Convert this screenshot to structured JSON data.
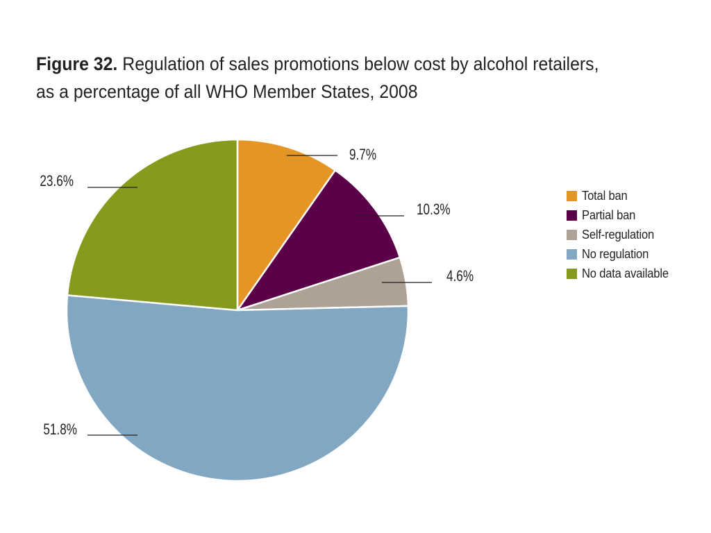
{
  "figure": {
    "title_lead": "Figure 32.",
    "title_line1": "Regulation of sales promotions below cost by alcohol retailers,",
    "title_line2": "as a percentage of all WHO Member States, 2008"
  },
  "chart_data": {
    "type": "pie",
    "title": "Figure 32. Regulation of sales promotions below cost by alcohol retailers, as a percentage of all WHO Member States, 2008",
    "unit": "%",
    "start_angle_deg": 0,
    "direction": "clockwise",
    "slices": [
      {
        "label": "Total ban",
        "value": 9.7,
        "display": "9.7%",
        "color": "#e59523"
      },
      {
        "label": "Partial ban",
        "value": 10.3,
        "display": "10.3%",
        "color": "#5b0048"
      },
      {
        "label": "Self-regulation",
        "value": 4.6,
        "display": "4.6%",
        "color": "#aea196"
      },
      {
        "label": "No regulation",
        "value": 51.8,
        "display": "51.8%",
        "color": "#82a7c2"
      },
      {
        "label": "No data available",
        "value": 23.6,
        "display": "23.6%",
        "color": "#869a1e"
      }
    ],
    "legend_position": "right",
    "data_labels": "outside with leader lines"
  }
}
